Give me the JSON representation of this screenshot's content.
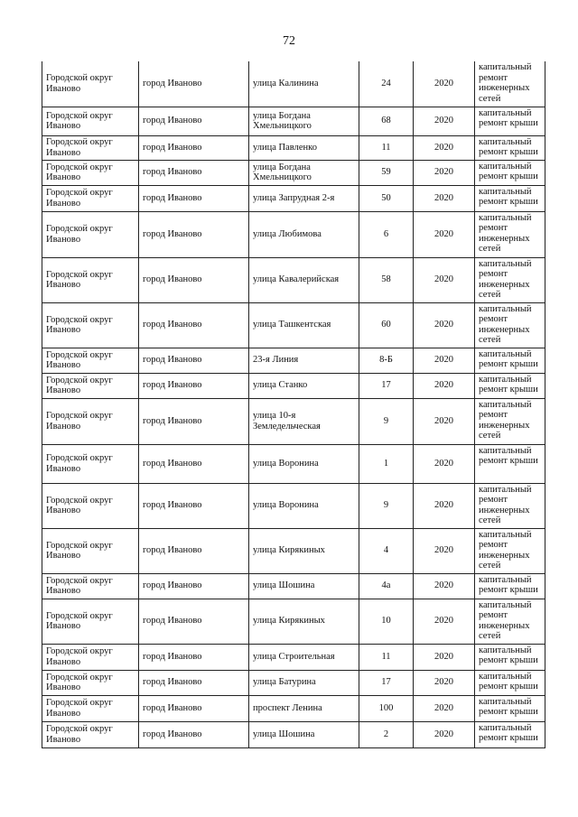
{
  "page_number": "72",
  "rows": [
    {
      "district": "Городской округ Иваново",
      "city": "город Иваново",
      "street": "улица Калинина",
      "house": "24",
      "year": "2020",
      "work": "капитальный ремонт инженерных сетей"
    },
    {
      "district": "Городской округ Иваново",
      "city": "город Иваново",
      "street": "улица Богдана Хмельницкого",
      "house": "68",
      "year": "2020",
      "work": "капитальный ремонт крыши"
    },
    {
      "district": "Городской округ Иваново",
      "city": "город Иваново",
      "street": "улица Павленко",
      "house": "11",
      "year": "2020",
      "work": "капитальный ремонт крыши"
    },
    {
      "district": "Городской округ Иваново",
      "city": "город Иваново",
      "street": "улица Богдана Хмельницкого",
      "house": "59",
      "year": "2020",
      "work": "капитальный ремонт крыши"
    },
    {
      "district": "Городской округ Иваново",
      "city": "город Иваново",
      "street": "улица Запрудная 2-я",
      "house": "50",
      "year": "2020",
      "work": "капитальный ремонт крыши"
    },
    {
      "district": "Городской округ Иваново",
      "city": "город Иваново",
      "street": "улица Любимова",
      "house": "6",
      "year": "2020",
      "work": "капитальный ремонт инженерных сетей"
    },
    {
      "district": "Городской округ Иваново",
      "city": "город Иваново",
      "street": "улица Кавалерийская",
      "house": "58",
      "year": "2020",
      "work": "капитальный ремонт инженерных сетей"
    },
    {
      "district": "Городской округ Иваново",
      "city": "город Иваново",
      "street": "улица Ташкентская",
      "house": "60",
      "year": "2020",
      "work": "капитальный ремонт инженерных сетей"
    },
    {
      "district": "Городской округ Иваново",
      "city": "город Иваново",
      "street": "23-я Линия",
      "house": "8-Б",
      "year": "2020",
      "work": "капитальный ремонт крыши"
    },
    {
      "district": "Городской округ Иваново",
      "city": "город Иваново",
      "street": "улица Станко",
      "house": "17",
      "year": "2020",
      "work": "капитальный ремонт крыши"
    },
    {
      "district": "Городской округ Иваново",
      "city": "город Иваново",
      "street": "улица 10-я Земледельческая",
      "house": "9",
      "year": "2020",
      "work": "капитальный ремонт инженерных сетей"
    },
    {
      "district": "Городской округ Иваново",
      "city": "город Иваново",
      "street": "улица Воронина",
      "house": "1",
      "year": "2020",
      "work": "капитальный ремонт крыши"
    },
    {
      "district": "Городской округ Иваново",
      "city": "город Иваново",
      "street": "улица Воронина",
      "house": "9",
      "year": "2020",
      "work": "капитальный ремонт инженерных сетей"
    },
    {
      "district": "Городской округ Иваново",
      "city": "город Иваново",
      "street": "улица Кирякиных",
      "house": "4",
      "year": "2020",
      "work": "капитальный ремонт инженерных сетей"
    },
    {
      "district": "Городской округ Иваново",
      "city": "город Иваново",
      "street": "улица Шошина",
      "house": "4а",
      "year": "2020",
      "work": "капитальный ремонт крыши"
    },
    {
      "district": "Городской округ Иваново",
      "city": "город Иваново",
      "street": "улица Кирякиных",
      "house": "10",
      "year": "2020",
      "work": "капитальный ремонт инженерных сетей"
    },
    {
      "district": "Городской округ Иваново",
      "city": "город Иваново",
      "street": "улица Строительная",
      "house": "11",
      "year": "2020",
      "work": "капитальный ремонт крыши"
    },
    {
      "district": "Городской округ Иваново",
      "city": "город Иваново",
      "street": "улица Батурина",
      "house": "17",
      "year": "2020",
      "work": "капитальный ремонт крыши"
    },
    {
      "district": "Городской округ Иваново",
      "city": "город Иваново",
      "street": "проспект Ленина",
      "house": "100",
      "year": "2020",
      "work": "капитальный ремонт крыши"
    },
    {
      "district": "Городской округ Иваново",
      "city": "город Иваново",
      "street": "улица Шошина",
      "house": "2",
      "year": "2020",
      "work": "капитальный ремонт крыши"
    }
  ]
}
